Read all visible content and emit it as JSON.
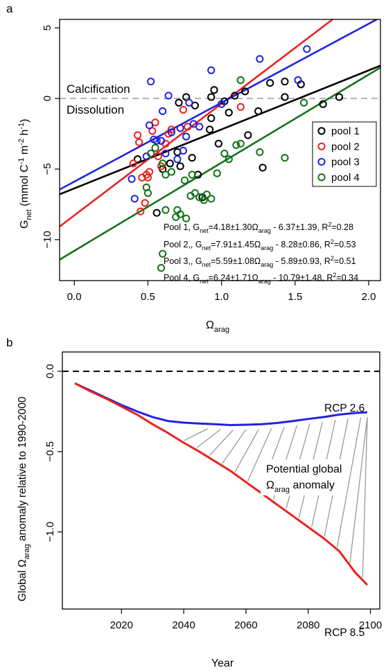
{
  "chart_data": [
    {
      "panel_label": "a",
      "type": "scatter",
      "xlabel_main": "Ω",
      "xlabel_sub": "arag",
      "ylabel": {
        "g": "G",
        "net": "net",
        "mid": " (mmol C",
        "exp1": "-1",
        "m": " m",
        "exp2": "-2",
        "h": " h",
        "exp3": "-1",
        "close": ")"
      },
      "xlim": [
        -0.1,
        2.08
      ],
      "ylim": [
        -12.9,
        5.6
      ],
      "xticks": [
        "0.0",
        "0.5",
        "1.0",
        "1.5",
        "2.0"
      ],
      "xtick_values": [
        0,
        0.5,
        1,
        1.5,
        2
      ],
      "yticks": [
        "-10",
        "-5",
        "0",
        "5"
      ],
      "ytick_values": [
        -10,
        -5,
        0,
        5
      ],
      "ref_line_y": 0,
      "calcification_label": "Calcification",
      "dissolution_label": "Dissolution",
      "legend_position": "right",
      "series": [
        {
          "name": "pool 1",
          "color": "#000000",
          "intercept": -6.37,
          "slope": 4.18,
          "eq": {
            "pre": "Pool 1, G",
            "sub": "net",
            "mid": "=4.18±1.30Ω",
            "sub2": "arag",
            "post": " - 6.37±1.39, R",
            "sup": "2",
            "end": "=0.28"
          },
          "points": [
            [
              0.43,
              -4.3
            ],
            [
              0.6,
              -5.0
            ],
            [
              0.56,
              -8.1
            ],
            [
              0.65,
              -4.6
            ],
            [
              0.7,
              -3.8
            ],
            [
              0.72,
              -4.8
            ],
            [
              0.71,
              -0.3
            ],
            [
              0.76,
              0.1
            ],
            [
              0.8,
              -4.2
            ],
            [
              0.82,
              -0.5
            ],
            [
              0.84,
              -5.4
            ],
            [
              0.87,
              -7.0
            ],
            [
              0.92,
              -2.2
            ],
            [
              0.93,
              0.1
            ],
            [
              0.95,
              0.6
            ],
            [
              0.93,
              -1.4
            ],
            [
              0.98,
              -3.2
            ],
            [
              1.02,
              -0.2
            ],
            [
              1.05,
              -1.0
            ],
            [
              1.09,
              0.2
            ],
            [
              1.16,
              0.5
            ],
            [
              1.18,
              -2.6
            ],
            [
              1.25,
              -0.9
            ],
            [
              1.28,
              -4.9
            ],
            [
              1.33,
              1.1
            ],
            [
              1.43,
              1.2
            ],
            [
              1.43,
              0.1
            ],
            [
              1.54,
              1.0
            ],
            [
              1.69,
              -0.4
            ],
            [
              1.8,
              0.1
            ]
          ]
        },
        {
          "name": "pool 2",
          "color": "#e8231f",
          "intercept": -8.28,
          "slope": 7.91,
          "eq": {
            "pre": "Pool 2,, G",
            "sub": "net",
            "mid": "=7.91±1.45Ω",
            "sub2": "arag",
            "post": " - 8.28±0.86, R",
            "sup": "2",
            "end": "=0.53"
          },
          "points": [
            [
              0.4,
              -4.6
            ],
            [
              0.43,
              -2.6
            ],
            [
              0.44,
              -3.1
            ],
            [
              0.45,
              -8.0
            ],
            [
              0.46,
              -5.6
            ],
            [
              0.48,
              -7.4
            ],
            [
              0.49,
              -5.4
            ],
            [
              0.5,
              -5.6
            ],
            [
              0.51,
              -5.2
            ],
            [
              0.53,
              -2.3
            ],
            [
              0.55,
              -1.7
            ],
            [
              0.57,
              -4.1
            ],
            [
              0.59,
              -4.8
            ],
            [
              0.62,
              -3.2
            ],
            [
              0.64,
              -2.5
            ],
            [
              0.66,
              -2.2
            ],
            [
              0.72,
              -2.1
            ],
            [
              0.74,
              -0.8
            ],
            [
              0.77,
              -2.0
            ],
            [
              1.13,
              -0.6
            ]
          ]
        },
        {
          "name": "pool 3",
          "color": "#1f22e0",
          "intercept": -5.89,
          "slope": 5.59,
          "eq": {
            "pre": "Pool 3,, G",
            "sub": "net",
            "mid": "=5.59±1.08Ω",
            "sub2": "arag",
            "post": " - 5.89±0.93, R",
            "sup": "2",
            "end": "=0.51"
          },
          "points": [
            [
              0.39,
              -5.7
            ],
            [
              0.41,
              -7.1
            ],
            [
              0.49,
              -4.1
            ],
            [
              0.51,
              -1.9
            ],
            [
              0.52,
              1.2
            ],
            [
              0.54,
              -2.9
            ],
            [
              0.56,
              -3.0
            ],
            [
              0.59,
              -3.0
            ],
            [
              0.6,
              -0.9
            ],
            [
              0.62,
              -3.9
            ],
            [
              0.64,
              0.2
            ],
            [
              0.66,
              -2.4
            ],
            [
              0.7,
              -4.3
            ],
            [
              0.72,
              -2.1
            ],
            [
              0.74,
              -3.7
            ],
            [
              0.76,
              -2.7
            ],
            [
              0.78,
              -0.3
            ],
            [
              0.81,
              -1.8
            ],
            [
              0.85,
              -2.0
            ],
            [
              0.93,
              2.0
            ],
            [
              1.0,
              -0.4
            ],
            [
              1.26,
              2.8
            ],
            [
              1.52,
              1.3
            ],
            [
              1.58,
              3.5
            ]
          ]
        },
        {
          "name": "pool 4",
          "color": "#12731a",
          "intercept": -10.79,
          "slope": 6.24,
          "eq": {
            "pre": "Pool 4, G",
            "sub": "net",
            "mid": "=6.24±1.71Ω",
            "sub2": "arag",
            "post": " - 10.79±1.48, R",
            "sup": "2",
            "end": "=0.34"
          },
          "points": [
            [
              0.49,
              -6.3
            ],
            [
              0.5,
              -6.7
            ],
            [
              0.52,
              -3.9
            ],
            [
              0.55,
              -3.5
            ],
            [
              0.59,
              -12.0
            ],
            [
              0.6,
              -11.0
            ],
            [
              0.6,
              -4.6
            ],
            [
              0.62,
              -5.4
            ],
            [
              0.62,
              -7.9
            ],
            [
              0.66,
              -5.2
            ],
            [
              0.69,
              -8.4
            ],
            [
              0.7,
              -7.9
            ],
            [
              0.72,
              -8.2
            ],
            [
              0.75,
              -5.8
            ],
            [
              0.76,
              -8.5
            ],
            [
              0.79,
              -6.9
            ],
            [
              0.8,
              -5.4
            ],
            [
              0.82,
              -6.7
            ],
            [
              0.85,
              -7.0
            ],
            [
              0.88,
              -7.2
            ],
            [
              0.9,
              -6.8
            ],
            [
              0.93,
              -7.1
            ],
            [
              0.97,
              -5.3
            ],
            [
              1.02,
              -3.9
            ],
            [
              1.05,
              -4.3
            ],
            [
              1.1,
              -3.3
            ],
            [
              1.13,
              1.3
            ],
            [
              1.13,
              -3.2
            ],
            [
              1.26,
              -3.8
            ],
            [
              1.43,
              -4.2
            ],
            [
              1.56,
              -0.3
            ]
          ]
        }
      ]
    },
    {
      "panel_label": "b",
      "type": "line",
      "xlabel": "Year",
      "ylabel": {
        "pre": "Global Ω",
        "sub": "arag",
        "post": " anomaly relative to 1990-2000"
      },
      "xlim": [
        2001,
        2103
      ],
      "ylim": [
        -1.48,
        0.12
      ],
      "xticks": [
        "2020",
        "2040",
        "2060",
        "2080",
        "2100"
      ],
      "xtick_values": [
        2020,
        2040,
        2060,
        2080,
        2100
      ],
      "yticks": [
        "0.0",
        "-0.5",
        "-1.0"
      ],
      "ytick_values": [
        0,
        -0.5,
        -1.0
      ],
      "ref_line_y": 0,
      "hatched_region_label": {
        "line1": "Potential global",
        "pre": "Ω",
        "sub": "arag",
        "post": " anomaly"
      },
      "series": [
        {
          "name": "RCP 2.6",
          "color": "#1f22e0",
          "points": [
            [
              2005,
              -0.075
            ],
            [
              2010,
              -0.12
            ],
            [
              2015,
              -0.165
            ],
            [
              2020,
              -0.21
            ],
            [
              2025,
              -0.25
            ],
            [
              2030,
              -0.285
            ],
            [
              2035,
              -0.31
            ],
            [
              2040,
              -0.32
            ],
            [
              2045,
              -0.325
            ],
            [
              2050,
              -0.33
            ],
            [
              2055,
              -0.335
            ],
            [
              2060,
              -0.333
            ],
            [
              2065,
              -0.33
            ],
            [
              2070,
              -0.322
            ],
            [
              2075,
              -0.31
            ],
            [
              2080,
              -0.297
            ],
            [
              2085,
              -0.285
            ],
            [
              2090,
              -0.27
            ],
            [
              2095,
              -0.26
            ],
            [
              2099,
              -0.255
            ]
          ]
        },
        {
          "name": "RCP 8.5",
          "color": "#e8231f",
          "points": [
            [
              2005,
              -0.075
            ],
            [
              2010,
              -0.125
            ],
            [
              2015,
              -0.17
            ],
            [
              2020,
              -0.22
            ],
            [
              2025,
              -0.27
            ],
            [
              2030,
              -0.33
            ],
            [
              2035,
              -0.385
            ],
            [
              2040,
              -0.445
            ],
            [
              2045,
              -0.5
            ],
            [
              2050,
              -0.56
            ],
            [
              2055,
              -0.62
            ],
            [
              2060,
              -0.69
            ],
            [
              2065,
              -0.76
            ],
            [
              2070,
              -0.83
            ],
            [
              2075,
              -0.9
            ],
            [
              2080,
              -0.97
            ],
            [
              2085,
              -1.04
            ],
            [
              2090,
              -1.12
            ],
            [
              2095,
              -1.25
            ],
            [
              2099,
              -1.33
            ]
          ]
        }
      ]
    }
  ]
}
